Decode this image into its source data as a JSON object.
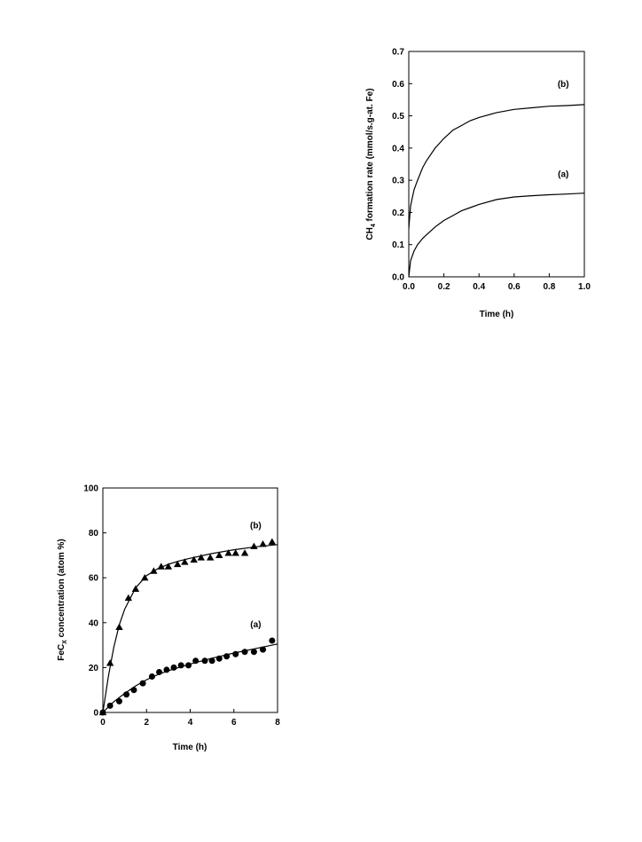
{
  "chart_data": [
    {
      "type": "line",
      "xlabel": "Time (h)",
      "ylabel": {
        "main": "CH",
        "sub": "4",
        "rest": " formation rate (mmol/s.g-at. Fe)"
      },
      "xlim": [
        0,
        1.0
      ],
      "ylim": [
        0,
        0.7
      ],
      "xticks": [
        "0.0",
        "0.2",
        "0.4",
        "0.6",
        "0.8",
        "1.0"
      ],
      "yticks": [
        "0.0",
        "0.1",
        "0.2",
        "0.3",
        "0.4",
        "0.5",
        "0.6",
        "0.7"
      ],
      "grid": false,
      "series": [
        {
          "label": "(b)",
          "label_at": [
            0.88,
            0.59
          ],
          "x": [
            0,
            0.01,
            0.03,
            0.05,
            0.08,
            0.1,
            0.15,
            0.2,
            0.25,
            0.3,
            0.35,
            0.4,
            0.5,
            0.6,
            0.7,
            0.8,
            0.9,
            1.0
          ],
          "y": [
            0.15,
            0.22,
            0.27,
            0.3,
            0.34,
            0.36,
            0.4,
            0.43,
            0.455,
            0.47,
            0.485,
            0.495,
            0.51,
            0.52,
            0.525,
            0.53,
            0.532,
            0.535
          ]
        },
        {
          "label": "(a)",
          "label_at": [
            0.88,
            0.31
          ],
          "x": [
            0,
            0.01,
            0.03,
            0.05,
            0.08,
            0.1,
            0.15,
            0.2,
            0.25,
            0.3,
            0.35,
            0.4,
            0.5,
            0.6,
            0.7,
            0.8,
            0.9,
            1.0
          ],
          "y": [
            0.0,
            0.05,
            0.08,
            0.1,
            0.12,
            0.13,
            0.155,
            0.175,
            0.19,
            0.205,
            0.215,
            0.225,
            0.24,
            0.248,
            0.252,
            0.255,
            0.257,
            0.26
          ]
        }
      ]
    },
    {
      "type": "scatter",
      "xlabel": "Time (h)",
      "ylabel": {
        "main": "FeC",
        "sub": "X",
        "rest": " concentration (atom %)"
      },
      "xlim": [
        0,
        8
      ],
      "ylim": [
        0,
        100
      ],
      "xticks": [
        "0",
        "2",
        "4",
        "6",
        "8"
      ],
      "yticks": [
        "0",
        "20",
        "40",
        "60",
        "80",
        "100"
      ],
      "grid": false,
      "series": [
        {
          "label": "(b)",
          "label_at": [
            7.0,
            82
          ],
          "marker": "triangle",
          "points": [
            [
              0,
              0
            ],
            [
              0.33,
              22
            ],
            [
              0.75,
              38
            ],
            [
              1.17,
              51
            ],
            [
              1.5,
              55
            ],
            [
              1.92,
              60
            ],
            [
              2.33,
              63
            ],
            [
              2.67,
              65
            ],
            [
              3.0,
              65
            ],
            [
              3.42,
              66
            ],
            [
              3.75,
              67
            ],
            [
              4.17,
              68
            ],
            [
              4.5,
              69
            ],
            [
              4.92,
              69
            ],
            [
              5.33,
              70
            ],
            [
              5.75,
              71
            ],
            [
              6.08,
              71
            ],
            [
              6.5,
              71
            ],
            [
              6.92,
              74
            ],
            [
              7.33,
              75
            ],
            [
              7.75,
              76
            ]
          ],
          "fit": {
            "x": [
              0,
              0.25,
              0.5,
              0.75,
              1.0,
              1.5,
              2.0,
              2.5,
              3.0,
              3.5,
              4.0,
              5.0,
              6.0,
              7.0,
              8.0
            ],
            "y": [
              0,
              16,
              29,
              39,
              46,
              55.5,
              61,
              64,
              66,
              67.5,
              68.7,
              70.8,
              72.5,
              73.8,
              74.8
            ]
          }
        },
        {
          "label": "(a)",
          "label_at": [
            7.0,
            38
          ],
          "marker": "circle",
          "points": [
            [
              0,
              0
            ],
            [
              0.33,
              3
            ],
            [
              0.75,
              5
            ],
            [
              1.08,
              8
            ],
            [
              1.42,
              10
            ],
            [
              1.83,
              13
            ],
            [
              2.25,
              16
            ],
            [
              2.58,
              18
            ],
            [
              2.92,
              19
            ],
            [
              3.25,
              20
            ],
            [
              3.58,
              21
            ],
            [
              3.92,
              21
            ],
            [
              4.25,
              23
            ],
            [
              4.67,
              23
            ],
            [
              5.0,
              23
            ],
            [
              5.33,
              24
            ],
            [
              5.67,
              25
            ],
            [
              6.08,
              26
            ],
            [
              6.5,
              27
            ],
            [
              6.92,
              27
            ],
            [
              7.33,
              28
            ],
            [
              7.75,
              32
            ]
          ],
          "fit": {
            "x": [
              0,
              0.25,
              0.5,
              1.0,
              1.5,
              2.0,
              2.5,
              3.0,
              4.0,
              5.0,
              6.0,
              7.0,
              8.0
            ],
            "y": [
              0,
              2.5,
              4.8,
              8.5,
              11.8,
              14.6,
              16.8,
              18.6,
              21.6,
              24.2,
              26.5,
              28.5,
              30.5
            ]
          }
        }
      ]
    }
  ]
}
